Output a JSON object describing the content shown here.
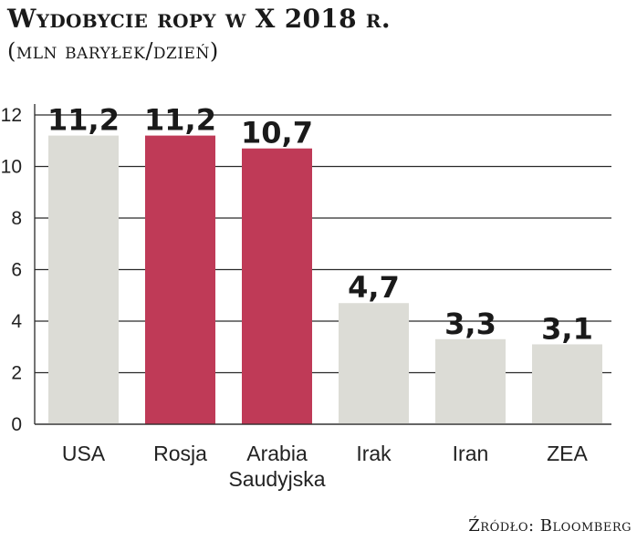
{
  "chart_data": {
    "type": "bar",
    "title": "Wydobycie ropy w X 2018 r.",
    "subtitle": "(mln baryłek/dzień)",
    "categories": [
      "USA",
      "Rosja",
      "Arabia Saudyjska",
      "Irak",
      "Iran",
      "ZEA"
    ],
    "category_lines": [
      [
        "USA"
      ],
      [
        "Rosja"
      ],
      [
        "Arabia",
        "Saudyjska"
      ],
      [
        "Irak"
      ],
      [
        "Iran"
      ],
      [
        "ZEA"
      ]
    ],
    "values": [
      11.2,
      11.2,
      10.7,
      4.7,
      3.3,
      3.1
    ],
    "value_labels": [
      "11,2",
      "11,2",
      "10,7",
      "4,7",
      "3,3",
      "3,1"
    ],
    "bar_colors": [
      "#dcdcd6",
      "#bf3a57",
      "#bf3a57",
      "#dcdcd6",
      "#dcdcd6",
      "#dcdcd6"
    ],
    "ylim": [
      0,
      12
    ],
    "yticks": [
      0,
      2,
      4,
      6,
      8,
      10,
      12
    ],
    "grid": true,
    "xlabel": "",
    "ylabel": "",
    "source": "Źródło: Bloomberg"
  }
}
